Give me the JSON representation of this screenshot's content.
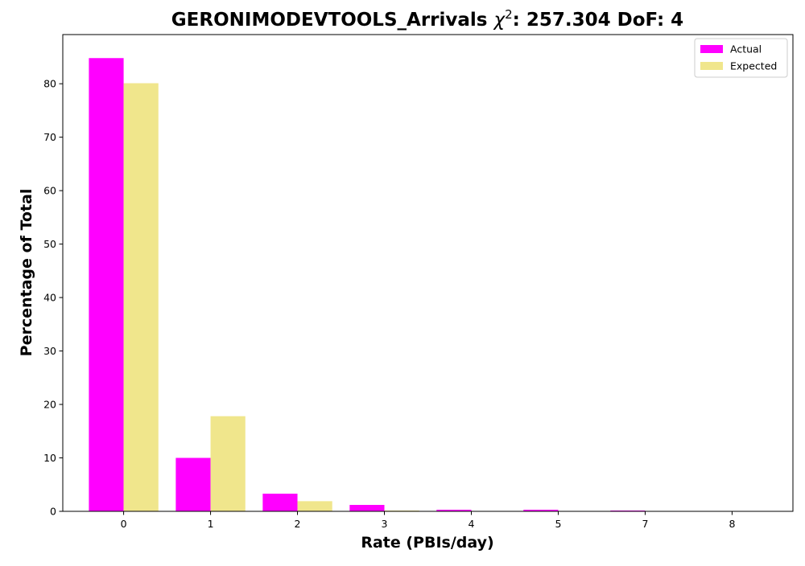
{
  "chart_data": {
    "type": "bar",
    "title": "GERONIMODEVTOOLS_Arrivals χ²: 257.304 DoF: 4",
    "title_parts": {
      "prefix": "GERONIMODEVTOOLS_Arrivals ",
      "chi": "χ",
      "sup": "2",
      "suffix": ": 257.304 DoF: 4"
    },
    "xlabel": "Rate (PBIs/day)",
    "ylabel": "Percentage of Total",
    "categories": [
      "0",
      "1",
      "2",
      "3",
      "4",
      "5",
      "7",
      "8"
    ],
    "series": [
      {
        "name": "Actual",
        "color": "#ff00ff",
        "values": [
          84.8,
          10.0,
          3.3,
          1.2,
          0.3,
          0.3,
          0.15,
          0.0
        ]
      },
      {
        "name": "Expected",
        "color": "#f0e68c",
        "values": [
          80.1,
          17.8,
          1.9,
          0.15,
          0.0,
          0.0,
          0.0,
          0.0
        ]
      }
    ],
    "ylim": [
      0,
      89.2
    ],
    "yticks": [
      0,
      10,
      20,
      30,
      40,
      50,
      60,
      70,
      80
    ],
    "grid": false,
    "legend_position": "top-right"
  }
}
